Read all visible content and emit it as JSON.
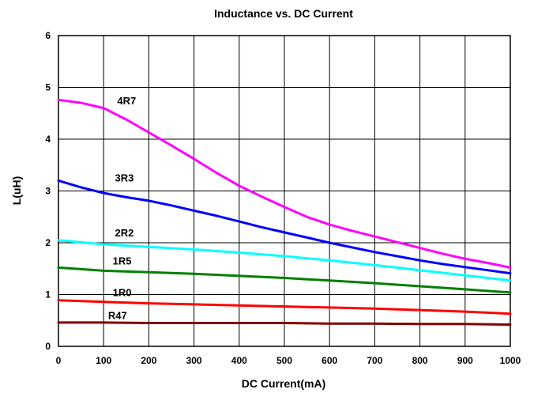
{
  "chart_data": {
    "type": "line",
    "title": "Inductance vs. DC Current",
    "xlabel": "DC Current(mA)",
    "ylabel": "L(uH)",
    "xlim": [
      0,
      1000
    ],
    "ylim": [
      0,
      6
    ],
    "xticks": [
      "0",
      "100",
      "200",
      "300",
      "400",
      "500",
      "600",
      "700",
      "800",
      "900",
      "1000"
    ],
    "yticks": [
      "0",
      "1",
      "2",
      "3",
      "4",
      "5",
      "6"
    ],
    "grid": true,
    "series": [
      {
        "name": "4R7",
        "color": "#ff00ff",
        "label_at": [
          130,
          4.67
        ],
        "x": [
          0,
          50,
          100,
          150,
          200,
          250,
          300,
          350,
          400,
          450,
          500,
          550,
          600,
          650,
          700,
          750,
          800,
          850,
          900,
          950,
          1000
        ],
        "y": [
          4.76,
          4.7,
          4.6,
          4.38,
          4.13,
          3.88,
          3.62,
          3.35,
          3.1,
          2.89,
          2.69,
          2.5,
          2.35,
          2.23,
          2.12,
          2.01,
          1.9,
          1.79,
          1.69,
          1.61,
          1.52
        ]
      },
      {
        "name": "3R3",
        "color": "#0000ff",
        "label_at": [
          125,
          3.18
        ],
        "x": [
          0,
          50,
          100,
          150,
          200,
          250,
          300,
          350,
          400,
          450,
          500,
          550,
          600,
          650,
          700,
          750,
          800,
          850,
          900,
          950,
          1000
        ],
        "y": [
          3.2,
          3.07,
          2.96,
          2.88,
          2.81,
          2.72,
          2.62,
          2.52,
          2.41,
          2.3,
          2.2,
          2.1,
          2.0,
          1.91,
          1.82,
          1.74,
          1.66,
          1.59,
          1.53,
          1.47,
          1.41
        ]
      },
      {
        "name": "2R2",
        "color": "#00ffff",
        "label_at": [
          125,
          2.12
        ],
        "x": [
          0,
          100,
          200,
          300,
          400,
          500,
          600,
          700,
          800,
          900,
          1000
        ],
        "y": [
          2.05,
          1.97,
          1.92,
          1.87,
          1.81,
          1.74,
          1.66,
          1.57,
          1.47,
          1.37,
          1.27
        ]
      },
      {
        "name": "1R5",
        "color": "#008000",
        "label_at": [
          120,
          1.58
        ],
        "x": [
          0,
          100,
          200,
          300,
          400,
          500,
          600,
          700,
          800,
          900,
          1000
        ],
        "y": [
          1.52,
          1.46,
          1.43,
          1.4,
          1.36,
          1.32,
          1.27,
          1.22,
          1.16,
          1.1,
          1.04
        ]
      },
      {
        "name": "1R0",
        "color": "#ff0000",
        "label_at": [
          120,
          0.97
        ],
        "x": [
          0,
          100,
          200,
          300,
          400,
          500,
          600,
          700,
          800,
          900,
          1000
        ],
        "y": [
          0.89,
          0.86,
          0.83,
          0.81,
          0.79,
          0.77,
          0.75,
          0.73,
          0.7,
          0.67,
          0.63
        ]
      },
      {
        "name": "R47",
        "color": "#800000",
        "label_at": [
          110,
          0.53
        ],
        "x": [
          0,
          100,
          200,
          300,
          400,
          500,
          600,
          700,
          800,
          900,
          1000
        ],
        "y": [
          0.46,
          0.46,
          0.45,
          0.45,
          0.45,
          0.45,
          0.44,
          0.44,
          0.43,
          0.43,
          0.42
        ]
      }
    ]
  }
}
